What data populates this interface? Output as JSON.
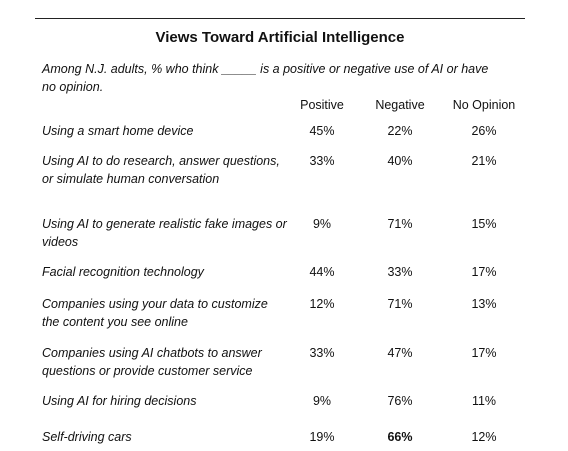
{
  "title": "Views Toward Artificial Intelligence",
  "subtitle": "Among N.J. adults, % who think _____ is a positive or negative use of AI or have no opinion.",
  "table": {
    "columns": [
      "Positive",
      "Negative",
      "No Opinion"
    ],
    "rows": [
      {
        "label": "Using a smart home device",
        "cells": [
          "45%",
          "22%",
          "26%"
        ]
      },
      {
        "label": "Using AI to do research, answer questions, or simulate human conversation",
        "cells": [
          "33%",
          "40%",
          "21%"
        ]
      },
      {
        "label": "Using AI to generate realistic fake images or videos",
        "cells": [
          "9%",
          "71%",
          "15%"
        ]
      },
      {
        "label": "Facial recognition technology",
        "cells": [
          "44%",
          "33%",
          "17%"
        ]
      },
      {
        "label": "Companies using your data to customize the content you see online",
        "cells": [
          "12%",
          "71%",
          "13%"
        ]
      },
      {
        "label": "Companies using AI chatbots to answer questions or provide customer service",
        "cells": [
          "33%",
          "47%",
          "17%"
        ]
      },
      {
        "label": "Using AI for hiring decisions",
        "cells": [
          "9%",
          "76%",
          "11%"
        ]
      },
      {
        "label": "Self-driving cars",
        "cells": [
          "19%",
          "66%",
          "12%"
        ]
      }
    ],
    "bold_cells": [
      [
        7,
        1
      ]
    ]
  }
}
